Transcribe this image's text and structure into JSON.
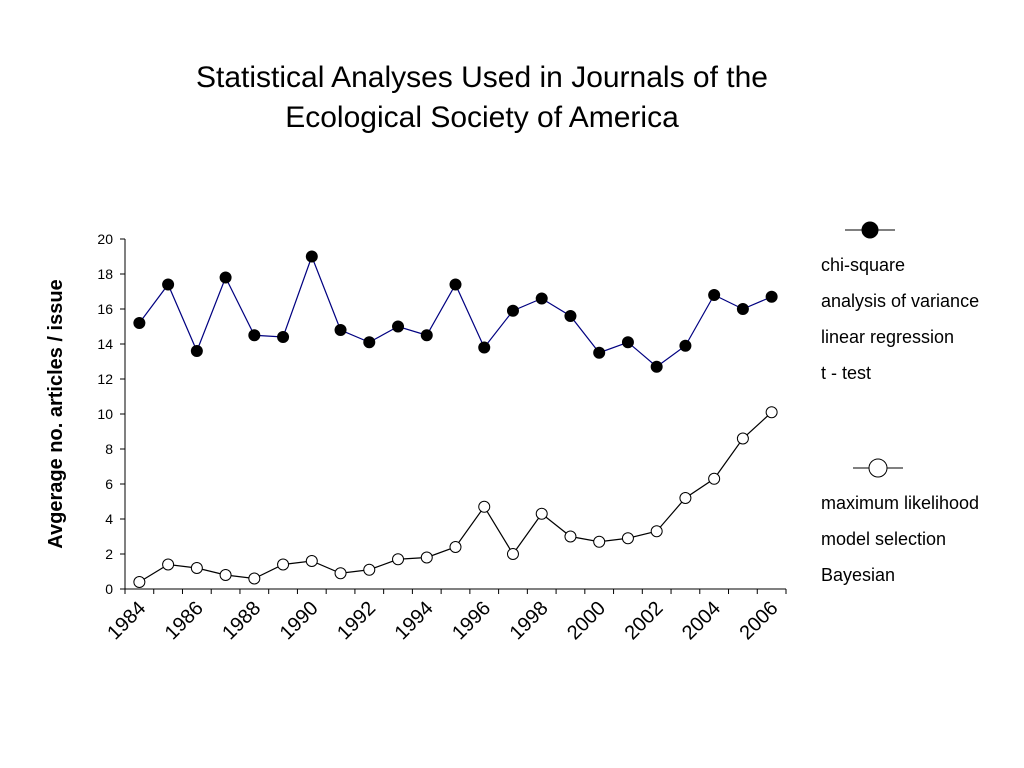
{
  "chart_data": {
    "type": "line",
    "title_lines": [
      "Statistical Analyses Used in Journals of the",
      "Ecological Society of America"
    ],
    "xlabel": "",
    "ylabel": "Avgerage no. articles / issue",
    "xlim": [
      1984,
      2007
    ],
    "ylim": [
      0,
      20
    ],
    "yticks": [
      0,
      2,
      4,
      6,
      8,
      10,
      12,
      14,
      16,
      18,
      20
    ],
    "xticks": [
      1984,
      1986,
      1988,
      1990,
      1992,
      1994,
      1996,
      1998,
      2000,
      2002,
      2004,
      2006
    ],
    "grid": false,
    "legend_position": "right",
    "x": [
      1984.5,
      1985.5,
      1986.5,
      1987.5,
      1988.5,
      1989.5,
      1990.5,
      1991.5,
      1992.5,
      1993.5,
      1994.5,
      1995.5,
      1996.5,
      1997.5,
      1998.5,
      1999.5,
      2000.5,
      2001.5,
      2002.5,
      2003.5,
      2004.5,
      2005.5,
      2006.5
    ],
    "series": [
      {
        "marker": "filled-circle",
        "color": "#000080",
        "legend_items": [
          "chi-square",
          "analysis of variance",
          "linear regression",
          "t - test"
        ],
        "values": [
          15.2,
          17.4,
          13.6,
          17.8,
          14.5,
          14.4,
          19.0,
          14.8,
          14.1,
          15.0,
          14.5,
          17.4,
          13.8,
          15.9,
          16.6,
          15.6,
          13.5,
          14.1,
          12.7,
          13.9,
          16.8,
          16.0,
          16.7
        ]
      },
      {
        "marker": "open-circle",
        "color": "#000000",
        "legend_items": [
          "maximum likelihood",
          "model selection",
          "Bayesian"
        ],
        "values": [
          0.4,
          1.4,
          1.2,
          0.8,
          0.6,
          1.4,
          1.6,
          0.9,
          1.1,
          1.7,
          1.8,
          2.4,
          4.7,
          2.0,
          4.3,
          3.0,
          2.7,
          2.9,
          3.3,
          5.2,
          6.3,
          8.6,
          10.1
        ]
      }
    ]
  }
}
